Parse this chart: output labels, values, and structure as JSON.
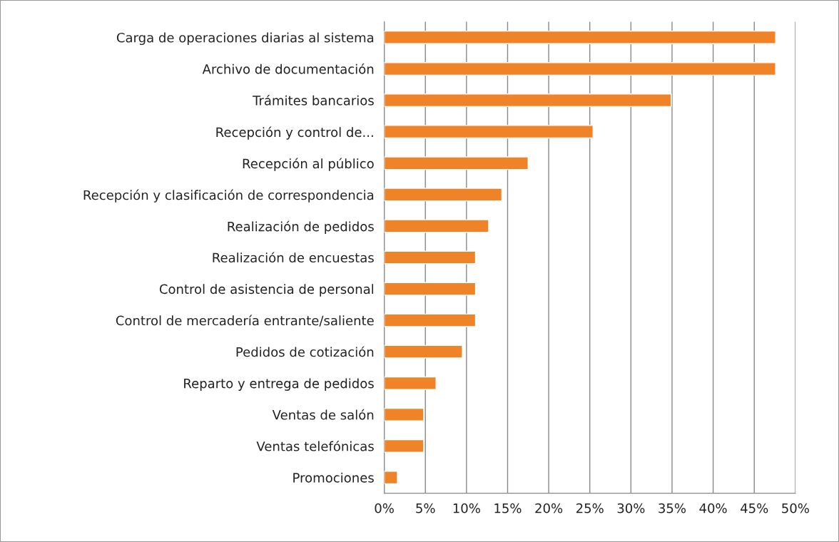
{
  "chart_data": {
    "type": "bar",
    "orientation": "horizontal",
    "categories": [
      "Carga de operaciones diarias al sistema",
      "Archivo de documentación",
      "Trámites bancarios",
      "Recepción y control de...",
      "Recepción al público",
      "Recepción y clasificación de correspondencia",
      "Realización de pedidos",
      "Realización de encuestas",
      "Control de asistencia de personal",
      "Control de mercadería entrante/saliente",
      "Pedidos de cotización",
      "Reparto y entrega de pedidos",
      "Ventas de salón",
      "Ventas telefónicas",
      "Promociones"
    ],
    "values": [
      47.6,
      47.6,
      34.9,
      25.4,
      17.5,
      14.3,
      12.7,
      11.1,
      11.1,
      11.1,
      9.5,
      6.3,
      4.8,
      4.8,
      1.6
    ],
    "color": "#ee8328",
    "xlim": [
      0,
      50
    ],
    "xticks": [
      {
        "value": 0,
        "label": "0%"
      },
      {
        "value": 5,
        "label": "5%"
      },
      {
        "value": 10,
        "label": "10%"
      },
      {
        "value": 15,
        "label": "15%"
      },
      {
        "value": 20,
        "label": "20%"
      },
      {
        "value": 25,
        "label": "25%"
      },
      {
        "value": 30,
        "label": "30%"
      },
      {
        "value": 35,
        "label": "35%"
      },
      {
        "value": 40,
        "label": "40%"
      },
      {
        "value": 45,
        "label": "45%"
      },
      {
        "value": 50,
        "label": "50%"
      }
    ],
    "grid": "x"
  }
}
